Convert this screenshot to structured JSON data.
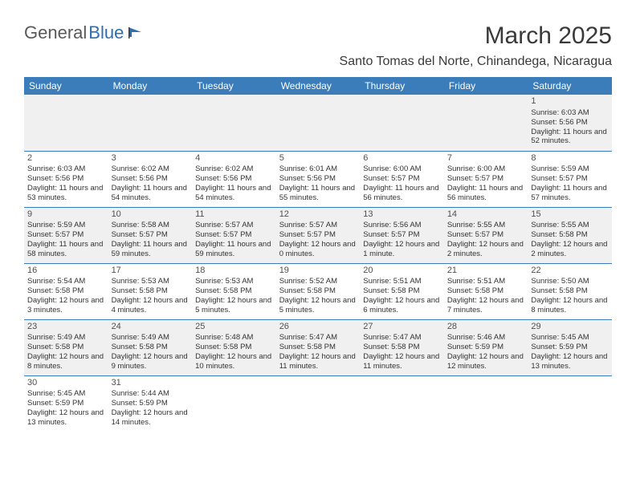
{
  "logo": {
    "part1": "General",
    "part2": "Blue"
  },
  "title": "March 2025",
  "location": "Santo Tomas del Norte, Chinandega, Nicaragua",
  "colors": {
    "header_bg": "#3b7cba",
    "header_text": "#ffffff",
    "row_alt_bg": "#f0f0f0",
    "border": "#3b7cba",
    "logo_gray": "#5a5a5a",
    "logo_blue": "#2f6fb0"
  },
  "weekdays": [
    "Sunday",
    "Monday",
    "Tuesday",
    "Wednesday",
    "Thursday",
    "Friday",
    "Saturday"
  ],
  "weeks": [
    [
      null,
      null,
      null,
      null,
      null,
      null,
      {
        "day": "1",
        "sunrise": "Sunrise: 6:03 AM",
        "sunset": "Sunset: 5:56 PM",
        "daylight": "Daylight: 11 hours and 52 minutes."
      }
    ],
    [
      {
        "day": "2",
        "sunrise": "Sunrise: 6:03 AM",
        "sunset": "Sunset: 5:56 PM",
        "daylight": "Daylight: 11 hours and 53 minutes."
      },
      {
        "day": "3",
        "sunrise": "Sunrise: 6:02 AM",
        "sunset": "Sunset: 5:56 PM",
        "daylight": "Daylight: 11 hours and 54 minutes."
      },
      {
        "day": "4",
        "sunrise": "Sunrise: 6:02 AM",
        "sunset": "Sunset: 5:56 PM",
        "daylight": "Daylight: 11 hours and 54 minutes."
      },
      {
        "day": "5",
        "sunrise": "Sunrise: 6:01 AM",
        "sunset": "Sunset: 5:56 PM",
        "daylight": "Daylight: 11 hours and 55 minutes."
      },
      {
        "day": "6",
        "sunrise": "Sunrise: 6:00 AM",
        "sunset": "Sunset: 5:57 PM",
        "daylight": "Daylight: 11 hours and 56 minutes."
      },
      {
        "day": "7",
        "sunrise": "Sunrise: 6:00 AM",
        "sunset": "Sunset: 5:57 PM",
        "daylight": "Daylight: 11 hours and 56 minutes."
      },
      {
        "day": "8",
        "sunrise": "Sunrise: 5:59 AM",
        "sunset": "Sunset: 5:57 PM",
        "daylight": "Daylight: 11 hours and 57 minutes."
      }
    ],
    [
      {
        "day": "9",
        "sunrise": "Sunrise: 5:59 AM",
        "sunset": "Sunset: 5:57 PM",
        "daylight": "Daylight: 11 hours and 58 minutes."
      },
      {
        "day": "10",
        "sunrise": "Sunrise: 5:58 AM",
        "sunset": "Sunset: 5:57 PM",
        "daylight": "Daylight: 11 hours and 59 minutes."
      },
      {
        "day": "11",
        "sunrise": "Sunrise: 5:57 AM",
        "sunset": "Sunset: 5:57 PM",
        "daylight": "Daylight: 11 hours and 59 minutes."
      },
      {
        "day": "12",
        "sunrise": "Sunrise: 5:57 AM",
        "sunset": "Sunset: 5:57 PM",
        "daylight": "Daylight: 12 hours and 0 minutes."
      },
      {
        "day": "13",
        "sunrise": "Sunrise: 5:56 AM",
        "sunset": "Sunset: 5:57 PM",
        "daylight": "Daylight: 12 hours and 1 minute."
      },
      {
        "day": "14",
        "sunrise": "Sunrise: 5:55 AM",
        "sunset": "Sunset: 5:57 PM",
        "daylight": "Daylight: 12 hours and 2 minutes."
      },
      {
        "day": "15",
        "sunrise": "Sunrise: 5:55 AM",
        "sunset": "Sunset: 5:58 PM",
        "daylight": "Daylight: 12 hours and 2 minutes."
      }
    ],
    [
      {
        "day": "16",
        "sunrise": "Sunrise: 5:54 AM",
        "sunset": "Sunset: 5:58 PM",
        "daylight": "Daylight: 12 hours and 3 minutes."
      },
      {
        "day": "17",
        "sunrise": "Sunrise: 5:53 AM",
        "sunset": "Sunset: 5:58 PM",
        "daylight": "Daylight: 12 hours and 4 minutes."
      },
      {
        "day": "18",
        "sunrise": "Sunrise: 5:53 AM",
        "sunset": "Sunset: 5:58 PM",
        "daylight": "Daylight: 12 hours and 5 minutes."
      },
      {
        "day": "19",
        "sunrise": "Sunrise: 5:52 AM",
        "sunset": "Sunset: 5:58 PM",
        "daylight": "Daylight: 12 hours and 5 minutes."
      },
      {
        "day": "20",
        "sunrise": "Sunrise: 5:51 AM",
        "sunset": "Sunset: 5:58 PM",
        "daylight": "Daylight: 12 hours and 6 minutes."
      },
      {
        "day": "21",
        "sunrise": "Sunrise: 5:51 AM",
        "sunset": "Sunset: 5:58 PM",
        "daylight": "Daylight: 12 hours and 7 minutes."
      },
      {
        "day": "22",
        "sunrise": "Sunrise: 5:50 AM",
        "sunset": "Sunset: 5:58 PM",
        "daylight": "Daylight: 12 hours and 8 minutes."
      }
    ],
    [
      {
        "day": "23",
        "sunrise": "Sunrise: 5:49 AM",
        "sunset": "Sunset: 5:58 PM",
        "daylight": "Daylight: 12 hours and 8 minutes."
      },
      {
        "day": "24",
        "sunrise": "Sunrise: 5:49 AM",
        "sunset": "Sunset: 5:58 PM",
        "daylight": "Daylight: 12 hours and 9 minutes."
      },
      {
        "day": "25",
        "sunrise": "Sunrise: 5:48 AM",
        "sunset": "Sunset: 5:58 PM",
        "daylight": "Daylight: 12 hours and 10 minutes."
      },
      {
        "day": "26",
        "sunrise": "Sunrise: 5:47 AM",
        "sunset": "Sunset: 5:58 PM",
        "daylight": "Daylight: 12 hours and 11 minutes."
      },
      {
        "day": "27",
        "sunrise": "Sunrise: 5:47 AM",
        "sunset": "Sunset: 5:58 PM",
        "daylight": "Daylight: 12 hours and 11 minutes."
      },
      {
        "day": "28",
        "sunrise": "Sunrise: 5:46 AM",
        "sunset": "Sunset: 5:59 PM",
        "daylight": "Daylight: 12 hours and 12 minutes."
      },
      {
        "day": "29",
        "sunrise": "Sunrise: 5:45 AM",
        "sunset": "Sunset: 5:59 PM",
        "daylight": "Daylight: 12 hours and 13 minutes."
      }
    ],
    [
      {
        "day": "30",
        "sunrise": "Sunrise: 5:45 AM",
        "sunset": "Sunset: 5:59 PM",
        "daylight": "Daylight: 12 hours and 13 minutes."
      },
      {
        "day": "31",
        "sunrise": "Sunrise: 5:44 AM",
        "sunset": "Sunset: 5:59 PM",
        "daylight": "Daylight: 12 hours and 14 minutes."
      },
      null,
      null,
      null,
      null,
      null
    ]
  ]
}
